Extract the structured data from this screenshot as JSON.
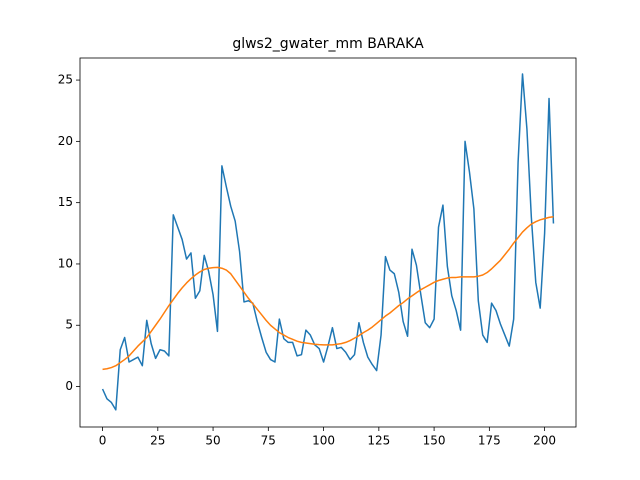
{
  "chart_data": {
    "type": "line",
    "title": "glws2_gwater_mm BARAKA",
    "x": [
      0,
      2,
      4,
      6,
      8,
      10,
      12,
      14,
      16,
      18,
      20,
      22,
      24,
      26,
      28,
      30,
      32,
      34,
      36,
      38,
      40,
      42,
      44,
      46,
      48,
      50,
      52,
      54,
      56,
      58,
      60,
      62,
      64,
      66,
      68,
      70,
      72,
      74,
      76,
      78,
      80,
      82,
      84,
      86,
      88,
      90,
      92,
      94,
      96,
      98,
      100,
      102,
      104,
      106,
      108,
      110,
      112,
      114,
      116,
      118,
      120,
      122,
      124,
      126,
      128,
      130,
      132,
      134,
      136,
      138,
      140,
      142,
      144,
      146,
      148,
      150,
      152,
      154,
      156,
      158,
      160,
      162,
      164,
      166,
      168,
      170,
      172,
      174,
      176,
      178,
      180,
      182,
      184,
      186,
      188,
      190,
      192,
      194,
      196,
      198,
      200,
      202,
      204
    ],
    "series": [
      {
        "color": "#1f77b4",
        "values": [
          -0.2,
          -1,
          -1.3,
          -1.9,
          3,
          4,
          2,
          2.2,
          2.4,
          1.7,
          5.4,
          3.5,
          2.3,
          3,
          2.9,
          2.5,
          14,
          13,
          12,
          10.4,
          10.9,
          7.2,
          7.8,
          10.7,
          9.4,
          7.5,
          4.5,
          18,
          16.3,
          14.7,
          13.5,
          11,
          6.9,
          7,
          6.8,
          5.3,
          4,
          2.8,
          2.2,
          2,
          5.5,
          3.9,
          3.6,
          3.6,
          2.5,
          2.6,
          4.6,
          4.2,
          3.4,
          3.1,
          2,
          3.3,
          4.8,
          3.1,
          3.2,
          2.8,
          2.2,
          2.6,
          5.2,
          3.6,
          2.4,
          1.8,
          1.3,
          4.2,
          10.6,
          9.5,
          9.2,
          7.7,
          5.3,
          4.1,
          11.2,
          9.9,
          7.5,
          5.2,
          4.8,
          5.5,
          13,
          14.8,
          9.8,
          7.4,
          6.2,
          4.6,
          20,
          17.5,
          14.5,
          7,
          4.2,
          3.6,
          6.8,
          6.2,
          5.1,
          4.2,
          3.3,
          5.5,
          18.3,
          25.5,
          21,
          13.8,
          8.5,
          6.4,
          12.5,
          23.5,
          13.3
        ]
      },
      {
        "color": "#ff7f0e",
        "values": [
          1.4,
          1.45,
          1.55,
          1.7,
          1.95,
          2.2,
          2.5,
          2.9,
          3.3,
          3.65,
          4.0,
          4.5,
          5.0,
          5.5,
          6.05,
          6.6,
          7.1,
          7.6,
          8.05,
          8.45,
          8.8,
          9.1,
          9.35,
          9.55,
          9.65,
          9.7,
          9.72,
          9.65,
          9.5,
          9.2,
          8.7,
          8.2,
          7.7,
          7.2,
          6.75,
          6.3,
          5.85,
          5.4,
          5.0,
          4.7,
          4.4,
          4.2,
          4.0,
          3.85,
          3.7,
          3.6,
          3.55,
          3.5,
          3.45,
          3.42,
          3.4,
          3.4,
          3.4,
          3.45,
          3.5,
          3.6,
          3.75,
          3.95,
          4.15,
          4.4,
          4.6,
          4.85,
          5.15,
          5.45,
          5.75,
          6.0,
          6.3,
          6.6,
          6.85,
          7.15,
          7.4,
          7.65,
          7.9,
          8.1,
          8.3,
          8.5,
          8.65,
          8.75,
          8.85,
          8.9,
          8.9,
          8.95,
          8.95,
          8.95,
          8.95,
          9.0,
          9.1,
          9.3,
          9.6,
          9.95,
          10.3,
          10.75,
          11.2,
          11.7,
          12.15,
          12.6,
          12.95,
          13.25,
          13.45,
          13.6,
          13.7,
          13.8,
          13.85
        ]
      }
    ],
    "xlim": [
      -10.2,
      214.2
    ],
    "ylim": [
      -3.3,
      26.8
    ],
    "xticks": [
      0,
      25,
      50,
      75,
      100,
      125,
      150,
      175,
      200
    ],
    "yticks": [
      0,
      5,
      10,
      15,
      20,
      25
    ]
  }
}
